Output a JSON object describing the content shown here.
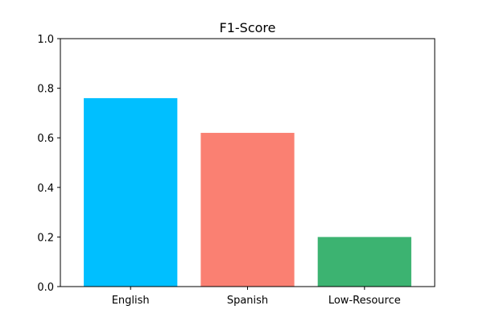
{
  "chart_data": {
    "type": "bar",
    "title": "F1-Score",
    "xlabel": "",
    "ylabel": "",
    "categories": [
      "English",
      "Spanish",
      "Low-Resource"
    ],
    "values": [
      0.76,
      0.62,
      0.2
    ],
    "colors": [
      "#00bfff",
      "#fa8072",
      "#3cb371"
    ],
    "ylim": [
      0.0,
      1.0
    ],
    "yticks": [
      0.0,
      0.2,
      0.4,
      0.6,
      0.8,
      1.0
    ],
    "ytick_labels": [
      "0.0",
      "0.2",
      "0.4",
      "0.6",
      "0.8",
      "1.0"
    ],
    "grid": false,
    "legend": "none"
  }
}
